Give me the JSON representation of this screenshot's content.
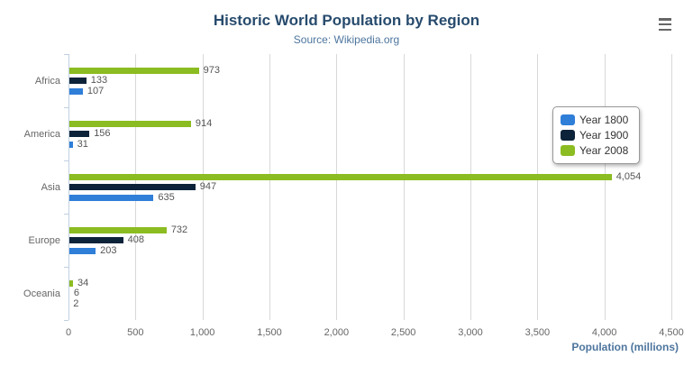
{
  "header": {
    "title": "Historic World Population by Region",
    "subtitle": "Source: Wikipedia.org"
  },
  "menu_icon": "hamburger-menu-icon",
  "colors": {
    "title": "#274b6d",
    "subtitle": "#4d759e",
    "axis_title": "#4d759e",
    "gridline": "#d8d8d8",
    "axis_line": "#c0d0e0",
    "labels": "#666666"
  },
  "chart_data": {
    "type": "bar",
    "orientation": "horizontal",
    "title": "Historic World Population by Region",
    "subtitle": "Source: Wikipedia.org",
    "xlabel": "Population (millions)",
    "ylabel": "",
    "xlim": [
      0,
      4500
    ],
    "grid": true,
    "legend_position": "right-middle",
    "categories": [
      "Africa",
      "America",
      "Asia",
      "Europe",
      "Oceania"
    ],
    "series": [
      {
        "name": "Year 1800",
        "color": "#2f7ed8",
        "values": [
          107,
          31,
          635,
          203,
          2
        ],
        "labels": [
          "107",
          "31",
          "635",
          "203",
          "2"
        ]
      },
      {
        "name": "Year 1900",
        "color": "#0d233a",
        "values": [
          133,
          156,
          947,
          408,
          6
        ],
        "labels": [
          "133",
          "156",
          "947",
          "408",
          "6"
        ]
      },
      {
        "name": "Year 2008",
        "color": "#8bbc21",
        "values": [
          973,
          914,
          4054,
          732,
          34
        ],
        "labels": [
          "973",
          "914",
          "4,054",
          "732",
          "34"
        ]
      }
    ],
    "series_display_order_top_to_bottom": [
      "Year 2008",
      "Year 1900",
      "Year 1800"
    ],
    "ticks": [
      0,
      500,
      1000,
      1500,
      2000,
      2500,
      3000,
      3500,
      4000,
      4500
    ],
    "tick_labels": [
      "0",
      "500",
      "1,000",
      "1,500",
      "2,000",
      "2,500",
      "3,000",
      "3,500",
      "4,000",
      "4,500"
    ]
  }
}
